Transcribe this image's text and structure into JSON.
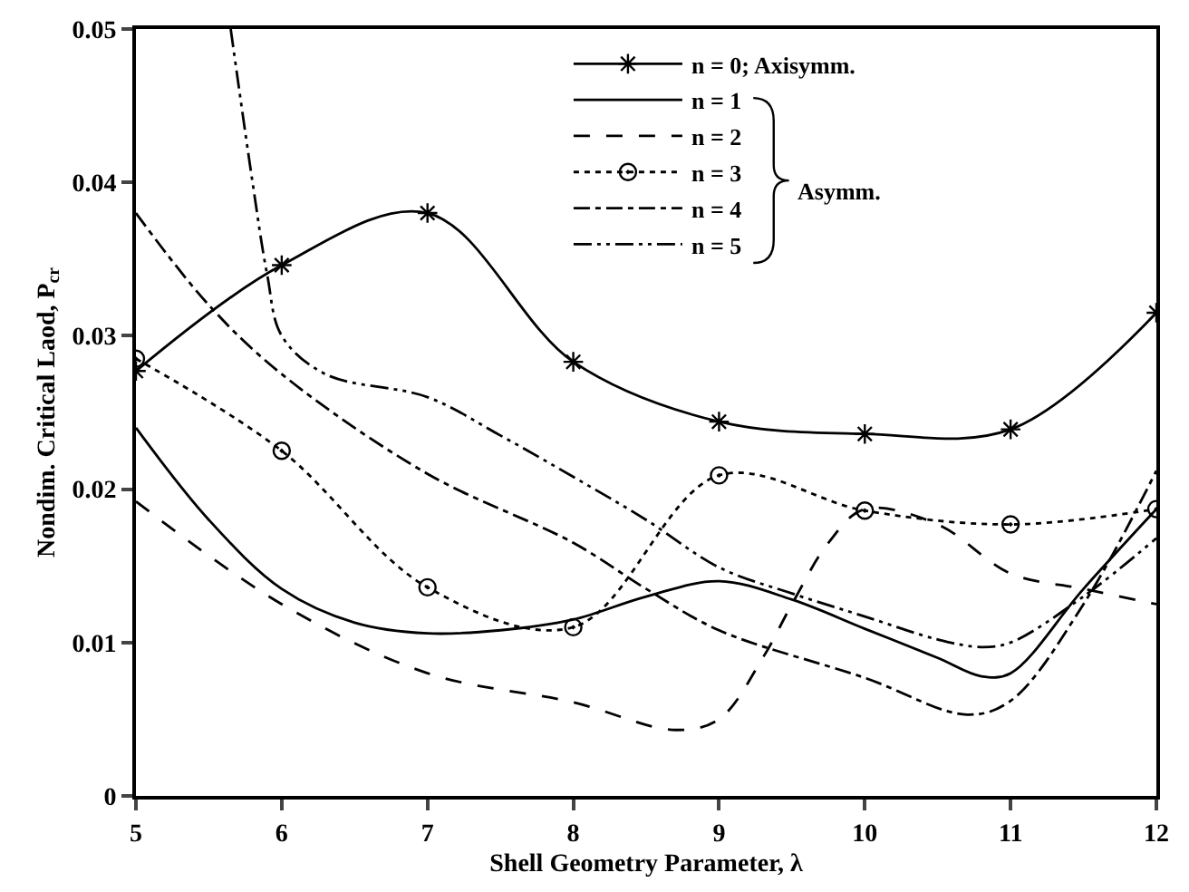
{
  "chart_data": {
    "type": "line",
    "xlabel": "Shell Geometry Parameter, λ",
    "ylabel": "Nondim. Critical Laod, P$_{cr}$",
    "xlim": [
      5,
      12
    ],
    "xticks": [
      5,
      6,
      7,
      8,
      9,
      10,
      11,
      12
    ],
    "ylim": [
      0,
      0.05
    ],
    "yticks": [
      0,
      0.01,
      0.02,
      0.03,
      0.04,
      0.05
    ],
    "legend": "top",
    "annotations": [
      "Asymm."
    ],
    "series": [
      {
        "name": "n = 0; Axisymm.",
        "color": "#000000",
        "line_style": "solid",
        "marker": "cross",
        "x": [
          5,
          6,
          7,
          8,
          9,
          10,
          11,
          12
        ],
        "values": [
          0.0277,
          0.0346,
          0.038,
          0.0283,
          0.0244,
          0.0236,
          0.0239,
          0.0315
        ]
      },
      {
        "name": "n = 1",
        "color": "#000000",
        "line_style": "solid",
        "marker": "none",
        "x": [
          5,
          5.5,
          6,
          6.5,
          7,
          7.5,
          8,
          8.5,
          9,
          9.5,
          10,
          10.5,
          10.8,
          11,
          11.5,
          12
        ],
        "values": [
          0.024,
          0.018,
          0.0135,
          0.0113,
          0.0106,
          0.0108,
          0.0115,
          0.013,
          0.014,
          0.0128,
          0.0109,
          0.009,
          0.0078,
          0.008,
          0.0135,
          0.0187
        ]
      },
      {
        "name": "n = 2",
        "color": "#000000",
        "line_style": "dashed",
        "marker": "none",
        "x": [
          5,
          6,
          7,
          8,
          8.7,
          9,
          9.3,
          9.5,
          9.75,
          10,
          10.5,
          11,
          11.5,
          12
        ],
        "values": [
          0.0192,
          0.0125,
          0.008,
          0.0061,
          0.0043,
          0.005,
          0.009,
          0.0125,
          0.0165,
          0.0187,
          0.0177,
          0.0145,
          0.0135,
          0.0125
        ]
      },
      {
        "name": "n = 3",
        "color": "#000000",
        "line_style": "dotted",
        "marker": "circle",
        "x": [
          5,
          6,
          7,
          8,
          9,
          10,
          11,
          12
        ],
        "values": [
          0.0285,
          0.0225,
          0.0136,
          0.011,
          0.0209,
          0.0186,
          0.0177,
          0.0187
        ]
      },
      {
        "name": "n = 4",
        "color": "#000000",
        "line_style": "dashdot",
        "marker": "none",
        "x": [
          5,
          5.5,
          6,
          7,
          8,
          8.5,
          9,
          10,
          10.7,
          11,
          11.5,
          12
        ],
        "values": [
          0.038,
          0.032,
          0.0275,
          0.021,
          0.0165,
          0.0135,
          0.0108,
          0.0077,
          0.0053,
          0.0062,
          0.0125,
          0.0212
        ]
      },
      {
        "name": "n = 5",
        "color": "#000000",
        "line_style": "dashdotdot",
        "marker": "none",
        "x": [
          5.65,
          5.8,
          5.9,
          6,
          6.3,
          7,
          7.5,
          8,
          8.5,
          9,
          9.5,
          10,
          10.5,
          10.8,
          11,
          11.5,
          12
        ],
        "values": [
          0.05,
          0.04,
          0.034,
          0.03,
          0.0275,
          0.026,
          0.0235,
          0.0208,
          0.018,
          0.0149,
          0.0132,
          0.0117,
          0.0102,
          0.0097,
          0.01,
          0.013,
          0.0168
        ]
      }
    ]
  }
}
